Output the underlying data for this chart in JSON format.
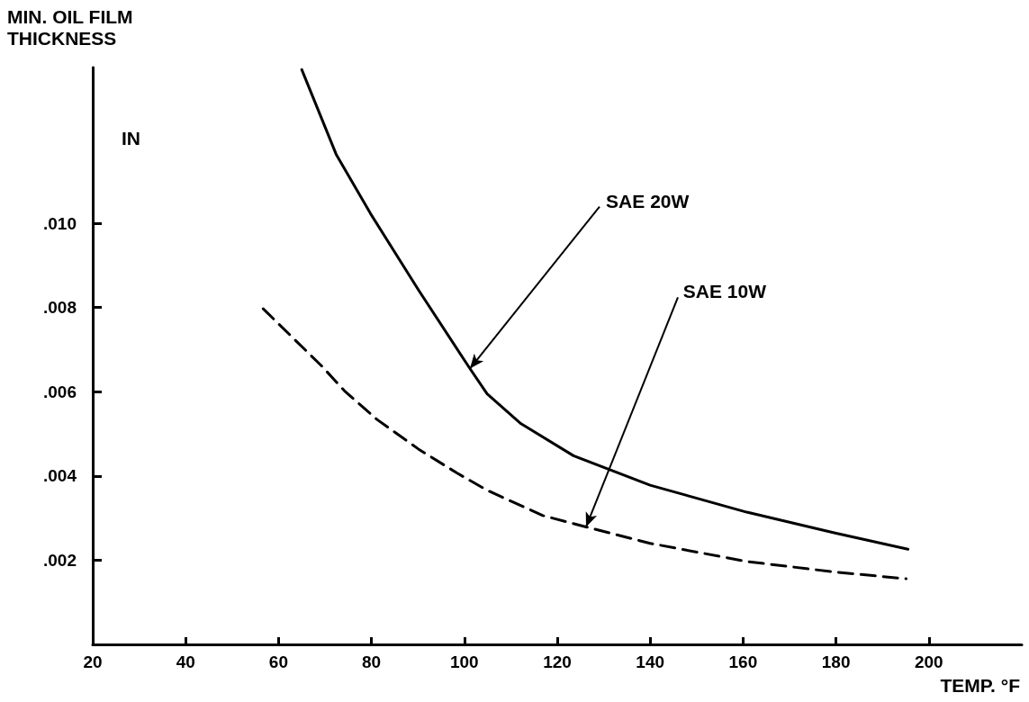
{
  "chart_data": {
    "type": "line",
    "xlabel": "TEMP. °F",
    "ylabel": "MIN. OIL FILM THICKNESS",
    "xlim": [
      20,
      220
    ],
    "xticks": [
      20,
      40,
      60,
      80,
      100,
      120,
      140,
      160,
      180,
      200
    ],
    "ylim": [
      0,
      0.0137
    ],
    "yticks": [
      {
        "value": 0.002,
        "label": ".002"
      },
      {
        "value": 0.004,
        "label": ".004"
      },
      {
        "value": 0.006,
        "label": ".006"
      },
      {
        "value": 0.008,
        "label": ".008"
      },
      {
        "value": 0.01,
        "label": ".010"
      }
    ],
    "grid": false,
    "marker": "none",
    "series": [
      {
        "color": "#000000",
        "line_style": "solid",
        "x": [
          65.0,
          72.4,
          79.8,
          90.1,
          101.2,
          104.9,
          112.2,
          123.5,
          140.0,
          160.8,
          179.6,
          195.5
        ],
        "values": [
          0.01365,
          0.01164,
          0.01023,
          0.00842,
          0.00655,
          0.00595,
          0.00524,
          0.00448,
          0.00378,
          0.00314,
          0.00265,
          0.00226
        ]
      },
      {
        "color": "#000000",
        "line_style": "dashed",
        "x": [
          56.7,
          69.3,
          74.2,
          81.2,
          90.1,
          98.4,
          104.9,
          116.9,
          126.2,
          140.0,
          160.8,
          179.6,
          195.1
        ],
        "values": [
          0.00797,
          0.00661,
          0.00602,
          0.00534,
          0.00464,
          0.00407,
          0.00366,
          0.00306,
          0.00279,
          0.0024,
          0.00197,
          0.00172,
          0.00156
        ]
      }
    ],
    "annotations": [
      "IN",
      {
        "text": "SAE 20W",
        "x": 101.2,
        "y": 0.00655
      },
      {
        "text": "SAE 10W",
        "x": 126.2,
        "y": 0.00279
      }
    ]
  }
}
